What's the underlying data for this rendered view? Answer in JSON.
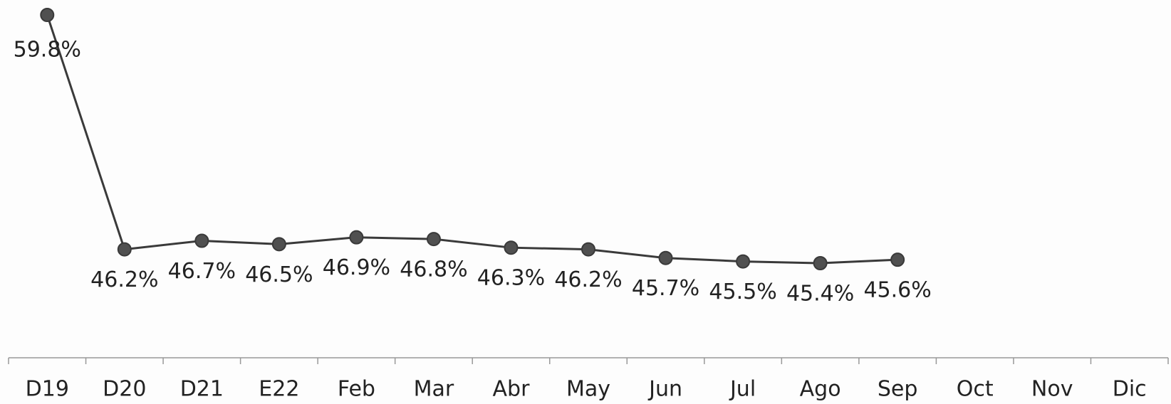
{
  "chart_data": {
    "type": "line",
    "categories": [
      "D19",
      "D20",
      "D21",
      "E22",
      "Feb",
      "Mar",
      "Abr",
      "May",
      "Jun",
      "Jul",
      "Ago",
      "Sep",
      "Oct",
      "Nov",
      "Dic"
    ],
    "values": [
      59.8,
      46.2,
      46.7,
      46.5,
      46.9,
      46.8,
      46.3,
      46.2,
      45.7,
      45.5,
      45.4,
      45.6,
      null,
      null,
      null
    ],
    "value_labels": [
      "59.8%",
      "46.2%",
      "46.7%",
      "46.5%",
      "46.9%",
      "46.8%",
      "46.3%",
      "46.2%",
      "45.7%",
      "45.5%",
      "45.4%",
      "45.6%",
      null,
      null,
      null
    ],
    "color": "#3a3a3a"
  }
}
